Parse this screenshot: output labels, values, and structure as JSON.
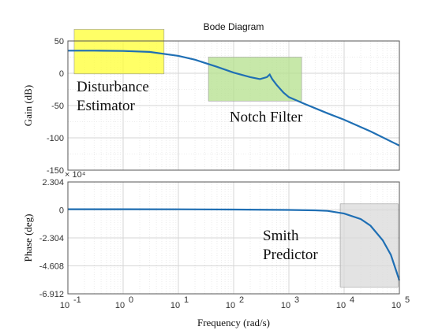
{
  "chart_data": {
    "type": "line",
    "title": "Bode Diagram",
    "xlabel": "Frequency  (rad/s)",
    "x_scale": "log",
    "xlim": [
      0.1,
      100000
    ],
    "x_tick_labels": [
      "10",
      "10",
      "10",
      "10",
      "10",
      "10",
      "10"
    ],
    "x_tick_exponents": [
      "-1",
      "0",
      "1",
      "2",
      "3",
      "4",
      "5"
    ],
    "grid": true,
    "line_color": "#1f6fb4",
    "panels": [
      {
        "name": "gain",
        "ylabel": "Gain  (dB)",
        "ylim": [
          -150,
          50
        ],
        "y_ticks": [
          50,
          0,
          -50,
          -100,
          -150
        ],
        "y_tick_labels": [
          "50",
          "0",
          "-50",
          "-100",
          "-150"
        ],
        "x": [
          0.1,
          0.3,
          1,
          3,
          10,
          20,
          50,
          100,
          200,
          300,
          400,
          450,
          500,
          600,
          800,
          1000,
          2000,
          5000,
          10000,
          30000,
          100000
        ],
        "y": [
          35,
          35,
          34.5,
          33,
          27,
          21,
          10,
          1,
          -6,
          -9,
          -6,
          -2,
          -9,
          -18,
          -30,
          -37,
          -48,
          -62,
          -72,
          -90,
          -112
        ],
        "annotations": [
          {
            "label_lines": [
              "Disturbance",
              "Estimator"
            ],
            "x_range": [
              0.13,
              5.5
            ],
            "y_range": [
              -1,
              68
            ],
            "color": "#ffff33"
          },
          {
            "label_lines": [
              "Notch Filter"
            ],
            "x_range": [
              35,
              1700
            ],
            "y_range": [
              -43,
              25
            ],
            "color": "#b4e08c"
          }
        ]
      },
      {
        "name": "phase",
        "ylabel": "Phase  (deg)",
        "ylim": [
          -6.912,
          2.304
        ],
        "exponent_label": "× 10⁴",
        "y_ticks": [
          2.304,
          0,
          -2.304,
          -4.608,
          -6.912
        ],
        "y_tick_labels": [
          "2.304",
          "0",
          "-2.304",
          "-4.608",
          "-6.912"
        ],
        "x": [
          0.1,
          1,
          10,
          100,
          1000,
          3000,
          5000,
          10000,
          20000,
          30000,
          50000,
          70000,
          100000
        ],
        "y": [
          0.06,
          0.06,
          0.05,
          0.03,
          0.0,
          -0.03,
          -0.08,
          -0.3,
          -0.75,
          -1.3,
          -2.5,
          -3.7,
          -5.8
        ],
        "annotations": [
          {
            "label_lines": [
              "Smith",
              "Predictor"
            ],
            "x_range": [
              8500,
              95000
            ],
            "y_range": [
              -6.35,
              0.5
            ],
            "color": "#d9d9d9"
          }
        ]
      }
    ]
  }
}
